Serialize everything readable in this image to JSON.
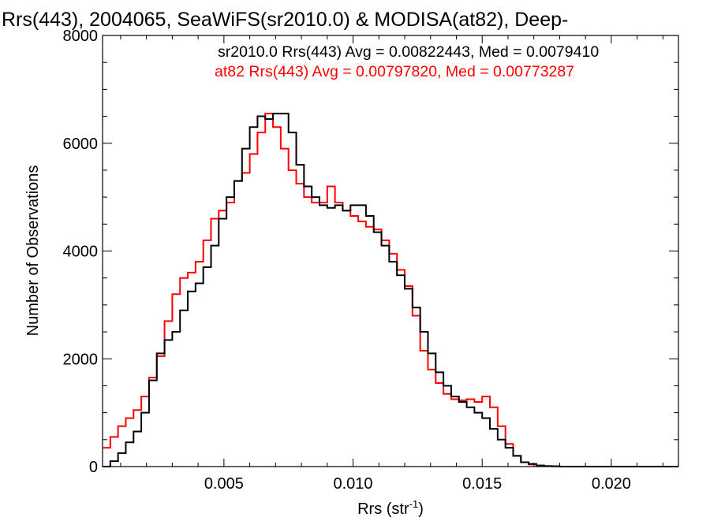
{
  "chart_data": {
    "type": "line",
    "title": "Rrs(443), 2004065, SeaWiFS(sr2010.0) & MODISA(at82), Deep-",
    "xlabel": "Rrs (str",
    "xlabel_sup": "-1",
    "xlabel_close": ")",
    "ylabel": "Number of Observations",
    "xlim": [
      0.0003,
      0.0226
    ],
    "ylim": [
      0,
      8000
    ],
    "xticks": [
      0.005,
      0.01,
      0.015,
      0.02
    ],
    "xtick_labels": [
      "0.005",
      "0.010",
      "0.015",
      "0.020"
    ],
    "yticks": [
      0,
      2000,
      4000,
      6000,
      8000
    ],
    "ytick_labels": [
      "0",
      "2000",
      "4000",
      "6000",
      "8000"
    ],
    "grid": false,
    "legend_position": "top-right",
    "series": [
      {
        "name": "sr2010.0 Rrs(443) Avg = 0.00822443, Med = 0.0079410",
        "color": "#000000",
        "x": [
          0.0003,
          0.0006,
          0.0009,
          0.0012,
          0.0015,
          0.0018,
          0.0021,
          0.0024,
          0.0027,
          0.003,
          0.0033,
          0.0036,
          0.0039,
          0.0042,
          0.0045,
          0.0048,
          0.0051,
          0.0054,
          0.0057,
          0.006,
          0.0063,
          0.0066,
          0.0069,
          0.0072,
          0.0075,
          0.0078,
          0.0081,
          0.0084,
          0.0087,
          0.009,
          0.0093,
          0.0096,
          0.0099,
          0.0102,
          0.0105,
          0.0108,
          0.0111,
          0.0114,
          0.0117,
          0.012,
          0.0123,
          0.0126,
          0.0129,
          0.0132,
          0.0135,
          0.0138,
          0.0141,
          0.0144,
          0.0147,
          0.015,
          0.0153,
          0.0156,
          0.0159,
          0.0162,
          0.0165,
          0.0168,
          0.0171,
          0.0174,
          0.0177,
          0.018,
          0.0185,
          0.019,
          0.02,
          0.021,
          0.0226
        ],
        "values": [
          0,
          100,
          250,
          450,
          650,
          1000,
          1600,
          2100,
          2350,
          2500,
          2900,
          3250,
          3400,
          3700,
          4100,
          4600,
          5000,
          5300,
          5900,
          6300,
          6500,
          6450,
          6550,
          6550,
          6200,
          5600,
          5200,
          5000,
          4850,
          4800,
          4850,
          4750,
          4850,
          4850,
          4650,
          4350,
          4100,
          3800,
          3550,
          3300,
          2950,
          2500,
          2100,
          1750,
          1500,
          1300,
          1200,
          1100,
          1000,
          900,
          700,
          500,
          350,
          200,
          80,
          50,
          20,
          10,
          5,
          0,
          0,
          0,
          0,
          0,
          0
        ]
      },
      {
        "name": "at82 Rrs(443) Avg = 0.00797820, Med = 0.00773287",
        "color": "#ff0000",
        "x": [
          0.0003,
          0.0006,
          0.0009,
          0.0012,
          0.0015,
          0.0018,
          0.0021,
          0.0024,
          0.0027,
          0.003,
          0.0033,
          0.0036,
          0.0039,
          0.0042,
          0.0045,
          0.0048,
          0.0051,
          0.0054,
          0.0057,
          0.006,
          0.0063,
          0.0066,
          0.0069,
          0.0072,
          0.0075,
          0.0078,
          0.0081,
          0.0084,
          0.0087,
          0.009,
          0.0093,
          0.0096,
          0.0099,
          0.0102,
          0.0105,
          0.0108,
          0.0111,
          0.0114,
          0.0117,
          0.012,
          0.0123,
          0.0126,
          0.0129,
          0.0132,
          0.0135,
          0.0138,
          0.0141,
          0.0144,
          0.0147,
          0.015,
          0.0153,
          0.0156,
          0.0159,
          0.0162,
          0.0165,
          0.0168,
          0.0171,
          0.0174,
          0.0177,
          0.018,
          0.0185,
          0.019,
          0.02,
          0.021,
          0.0226
        ],
        "values": [
          350,
          550,
          750,
          900,
          1050,
          1300,
          1650,
          2050,
          2700,
          3200,
          3500,
          3600,
          3800,
          4200,
          4600,
          4750,
          4900,
          5300,
          5450,
          5800,
          6200,
          6550,
          6300,
          5900,
          5500,
          5250,
          5000,
          4900,
          4900,
          5200,
          4900,
          4750,
          4650,
          4550,
          4450,
          4400,
          4200,
          3950,
          3650,
          3350,
          2800,
          2150,
          1800,
          1550,
          1350,
          1250,
          1230,
          1250,
          1200,
          1300,
          1100,
          750,
          420,
          200,
          80,
          40,
          20,
          10,
          5,
          0,
          0,
          0,
          0,
          0,
          0
        ]
      }
    ]
  }
}
